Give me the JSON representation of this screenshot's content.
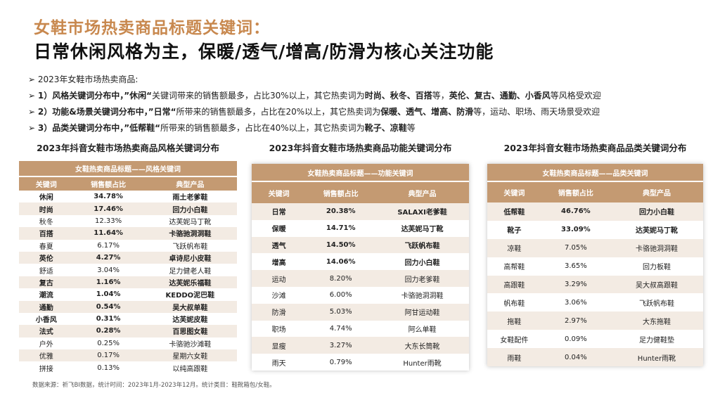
{
  "title_line1": "女鞋市场热卖商品标题关键词：",
  "title_line2": "日常休闲风格为主，保暖/透气/增高/防滑为核心关注功能",
  "bullets": [
    [
      {
        "text": "2023年女鞋市场热卖商品:",
        "bold": false
      }
    ],
    [
      {
        "text": "1）风格关键词分布中，”休闲“",
        "bold": true
      },
      {
        "text": "关键词带来的销售额最多，占比30%以上，其它热卖词为",
        "bold": false
      },
      {
        "text": "时尚、秋冬、百搭",
        "bold": true
      },
      {
        "text": "等，",
        "bold": false
      },
      {
        "text": "英伦、复古、通勤、小香风",
        "bold": true
      },
      {
        "text": "等风格受欢迎",
        "bold": false
      }
    ],
    [
      {
        "text": "2）功能&场景关键词分布中，”日常“",
        "bold": true
      },
      {
        "text": "所带来的销售额最多，占比在20%以上，其它热卖词为",
        "bold": false
      },
      {
        "text": "保暖、透气、增高、防滑",
        "bold": true
      },
      {
        "text": "等，运动、职场、雨天场景受欢迎",
        "bold": false
      }
    ],
    [
      {
        "text": "3）品类关键词分布中，”低帮鞋“",
        "bold": true
      },
      {
        "text": "所带来的销售额最多，占比在40%以上，其它热卖词为",
        "bold": false
      },
      {
        "text": "靴子、凉鞋",
        "bold": true
      },
      {
        "text": "等",
        "bold": false
      }
    ]
  ],
  "tables": [
    {
      "title": "2023年抖音女鞋市场热卖商品风格关键词分布",
      "banner": "女鞋热卖商品标题——风格关键词",
      "headers": [
        "关键词",
        "销售额占比",
        "典型产品"
      ],
      "rows": [
        {
          "cells": [
            "休闲",
            "34.78%",
            "雨土老爹鞋"
          ],
          "bold": true
        },
        {
          "cells": [
            "时尚",
            "17.46%",
            "回力小白鞋"
          ],
          "bold": true
        },
        {
          "cells": [
            "秋冬",
            "12.33%",
            "达芙妮马丁靴"
          ],
          "bold": false
        },
        {
          "cells": [
            "百搭",
            "11.64%",
            "卡骆驰洞洞鞋"
          ],
          "bold": true
        },
        {
          "cells": [
            "春夏",
            "6.17%",
            "飞跃帆布鞋"
          ],
          "bold": false
        },
        {
          "cells": [
            "英伦",
            "4.27%",
            "卓诗尼小皮鞋"
          ],
          "bold": true
        },
        {
          "cells": [
            "舒适",
            "3.04%",
            "足力健老人鞋"
          ],
          "bold": false
        },
        {
          "cells": [
            "复古",
            "1.16%",
            "达芙妮乐福鞋"
          ],
          "bold": true
        },
        {
          "cells": [
            "潮流",
            "1.04%",
            "KEDDO泥巴鞋"
          ],
          "bold": true
        },
        {
          "cells": [
            "通勤",
            "0.54%",
            "吴大叔单鞋"
          ],
          "bold": true
        },
        {
          "cells": [
            "小香风",
            "0.31%",
            "达芙妮皮鞋"
          ],
          "bold": true
        },
        {
          "cells": [
            "法式",
            "0.28%",
            "百思图女鞋"
          ],
          "bold": true
        },
        {
          "cells": [
            "户外",
            "0.25%",
            "卡骆驰沙滩鞋"
          ],
          "bold": false
        },
        {
          "cells": [
            "优雅",
            "0.17%",
            "星期六女鞋"
          ],
          "bold": false
        },
        {
          "cells": [
            "拼接",
            "0.13%",
            "以纯高跟鞋"
          ],
          "bold": false
        }
      ]
    },
    {
      "title": "2023年抖音女鞋市场热卖商品功能关键词分布",
      "banner": "女鞋热卖商品标题——功能关键词",
      "headers": [
        "关键词",
        "销售额占比",
        "典型产品"
      ],
      "rows": [
        {
          "cells": [
            "日常",
            "20.38%",
            "SALAXI老爹鞋"
          ],
          "bold": true
        },
        {
          "cells": [
            "保暖",
            "14.71%",
            "达芙妮马丁靴"
          ],
          "bold": true
        },
        {
          "cells": [
            "透气",
            "14.50%",
            "飞跃帆布鞋"
          ],
          "bold": true
        },
        {
          "cells": [
            "增高",
            "14.06%",
            "回力小白鞋"
          ],
          "bold": true
        },
        {
          "cells": [
            "运动",
            "8.20%",
            "回力老爹鞋"
          ],
          "bold": false
        },
        {
          "cells": [
            "沙滩",
            "6.00%",
            "卡骆驰洞洞鞋"
          ],
          "bold": false
        },
        {
          "cells": [
            "防滑",
            "5.03%",
            "阿甘运动鞋"
          ],
          "bold": false
        },
        {
          "cells": [
            "职场",
            "4.74%",
            "阿么单鞋"
          ],
          "bold": false
        },
        {
          "cells": [
            "显瘦",
            "3.27%",
            "大东长筒靴"
          ],
          "bold": false
        },
        {
          "cells": [
            "雨天",
            "0.79%",
            "Hunter雨靴"
          ],
          "bold": false
        }
      ]
    },
    {
      "title": "2023年抖音女鞋市场热卖商品品类关键词分布",
      "banner": "女鞋热卖商品标题——品类关键词",
      "headers": [
        "关键词",
        "销售额占比",
        "典型产品"
      ],
      "rows": [
        {
          "cells": [
            "低帮鞋",
            "46.76%",
            "回力小白鞋"
          ],
          "bold": true
        },
        {
          "cells": [
            "靴子",
            "33.09%",
            "达芙妮马丁靴"
          ],
          "bold": true
        },
        {
          "cells": [
            "凉鞋",
            "7.05%",
            "卡骆驰洞洞鞋"
          ],
          "bold": false
        },
        {
          "cells": [
            "高帮鞋",
            "3.65%",
            "回力板鞋"
          ],
          "bold": false
        },
        {
          "cells": [
            "高跟鞋",
            "3.29%",
            "吴大叔高跟鞋"
          ],
          "bold": false
        },
        {
          "cells": [
            "帆布鞋",
            "3.06%",
            "飞跃帆布鞋"
          ],
          "bold": false
        },
        {
          "cells": [
            "拖鞋",
            "2.97%",
            "大东拖鞋"
          ],
          "bold": false
        },
        {
          "cells": [
            "女鞋配件",
            "0.09%",
            "足力健鞋垫"
          ],
          "bold": false
        },
        {
          "cells": [
            "雨鞋",
            "0.04%",
            "Hunter雨靴"
          ],
          "bold": false
        }
      ]
    }
  ],
  "footer": "数据来源：祈飞BI数据，统计时间：2023年1月-2023年12月。统计类目：鞋靴箱包/女鞋。"
}
